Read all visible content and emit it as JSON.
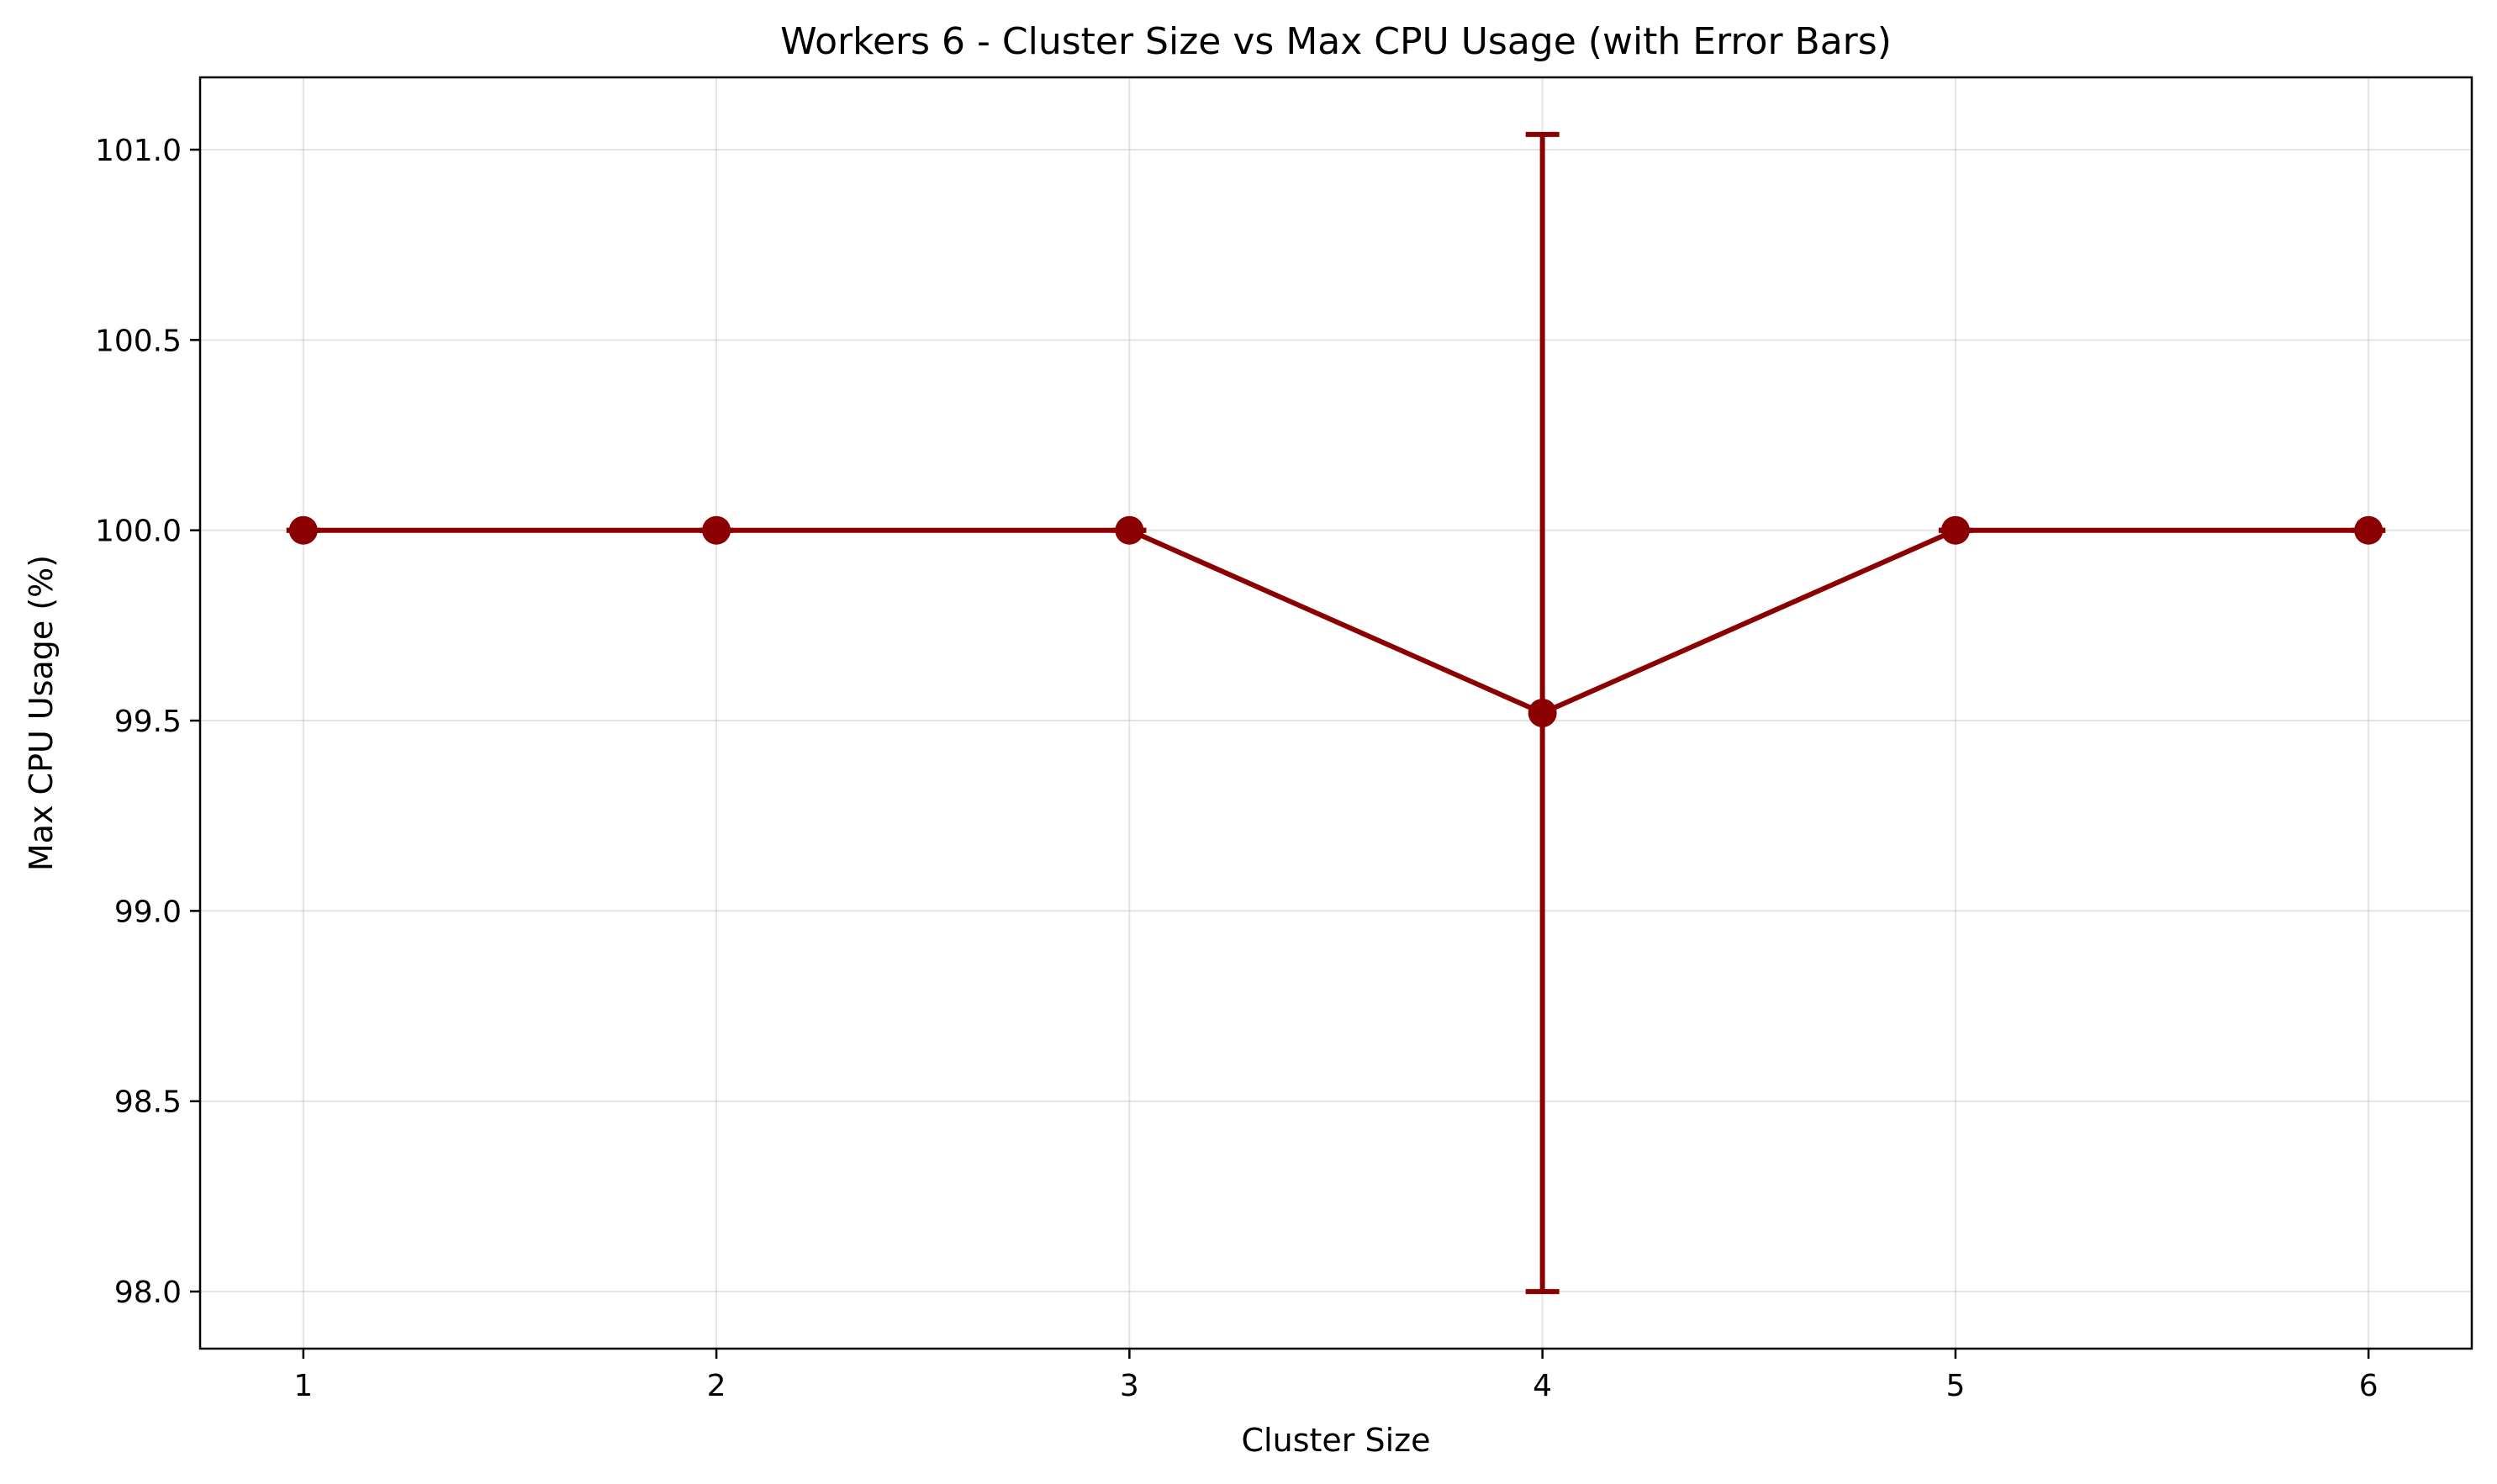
{
  "chart_data": {
    "type": "line",
    "title": "Workers 6 - Cluster Size vs Max CPU Usage (with Error Bars)",
    "xlabel": "Cluster Size",
    "ylabel": "Max CPU Usage (%)",
    "x": [
      1,
      2,
      3,
      4,
      5,
      6
    ],
    "x_tick_labels": [
      "1",
      "2",
      "3",
      "4",
      "5",
      "6"
    ],
    "xlim": [
      0.75,
      6.25
    ],
    "y_ticks": [
      98.0,
      98.5,
      99.0,
      99.5,
      100.0,
      100.5,
      101.0
    ],
    "y_tick_labels": [
      "98.0",
      "98.5",
      "99.0",
      "99.5",
      "100.0",
      "100.5",
      "101.0"
    ],
    "ylim": [
      97.85,
      101.19
    ],
    "grid": true,
    "series": [
      {
        "values": [
          100.0,
          100.0,
          100.0,
          99.52,
          100.0,
          100.0
        ],
        "error_low": [
          100.0,
          100.0,
          100.0,
          98.0,
          100.0,
          100.0
        ],
        "error_high": [
          100.0,
          100.0,
          100.0,
          101.04,
          100.0,
          100.0
        ],
        "color": "#8b0000"
      }
    ]
  }
}
